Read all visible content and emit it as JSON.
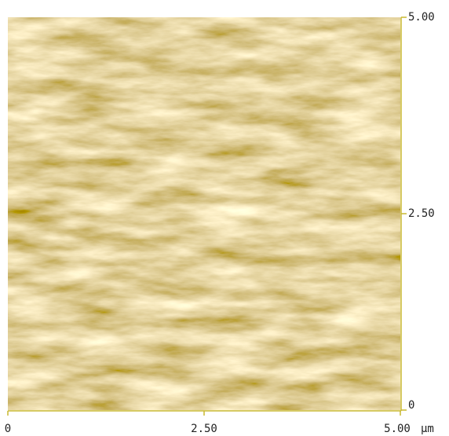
{
  "chart_data": {
    "type": "image",
    "x_unit": "µm",
    "xlim": [
      0,
      5
    ],
    "ylim": [
      0,
      5
    ],
    "xticks": [
      0,
      {
        "value": 2.5,
        "label": "2.50"
      },
      {
        "value": 5,
        "label": "5.00"
      }
    ],
    "yticks": [
      0,
      {
        "value": 2.5,
        "label": "2.50"
      },
      {
        "value": 5,
        "label": "5.00"
      }
    ],
    "axis_color": "#c8b830"
  }
}
